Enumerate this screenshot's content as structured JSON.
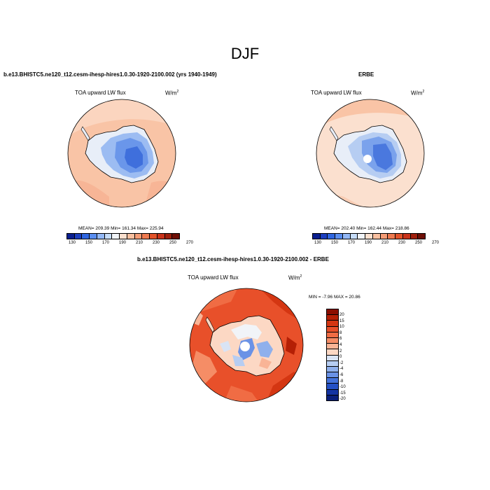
{
  "figure": {
    "title": "DJF",
    "variable": "TOA upward LW flux",
    "units_base": "W/m",
    "units_exp": "2"
  },
  "panels": {
    "model": {
      "title": "b.e13.BHISTC5.ne120_t12.cesm-ihesp-hires1.0.30-1920-2100.002 (yrs 1940-1949)",
      "stats": "MEAN= 209.39  Min= 161.34  Max= 225.94"
    },
    "obs": {
      "title": "ERBE",
      "stats": "MEAN= 202.40  Min= 162.44  Max= 218.86"
    },
    "diff": {
      "title": "b.e13.BHISTC5.ne120_t12.cesm-ihesp-hires1.0.30-1920-2100.002 - ERBE",
      "stats": "MIN =  -7.96 MAX =  20.86"
    }
  },
  "abs_colorbar": {
    "ticks": [
      "130",
      "150",
      "170",
      "190",
      "210",
      "230",
      "250",
      "270"
    ],
    "colors": [
      "#0a1f8f",
      "#1c3fbf",
      "#2f66e0",
      "#5a8ef0",
      "#93b8f6",
      "#c6dcf8",
      "#f1f4f8",
      "#fbe0cf",
      "#f9c0a0",
      "#f49c76",
      "#ee7a50",
      "#e2532a",
      "#c9331a",
      "#a0200d",
      "#6e0f06"
    ]
  },
  "diff_colorbar": {
    "ticks": [
      "20",
      "15",
      "10",
      "8",
      "6",
      "4",
      "2",
      "0",
      "-2",
      "-4",
      "-6",
      "-8",
      "-10",
      "-15",
      "-20"
    ],
    "colors": [
      "#8b0e00",
      "#b41f05",
      "#d43612",
      "#e8502a",
      "#f06c44",
      "#f58d66",
      "#f9b496",
      "#fcd8c4",
      "#d9e4f5",
      "#b6cdf2",
      "#8fb0ec",
      "#6a92e6",
      "#4573dc",
      "#2551c6",
      "#1334a3",
      "#0a1f7a"
    ]
  }
}
